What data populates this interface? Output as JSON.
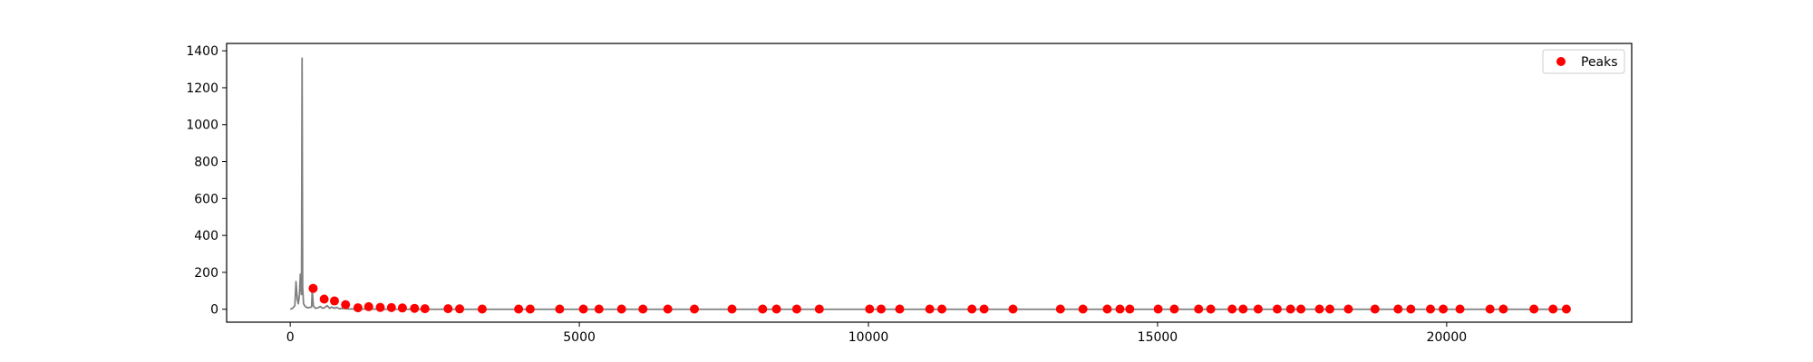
{
  "chart_data": {
    "type": "line",
    "title": "",
    "xlabel": "",
    "ylabel": "",
    "xlim": [
      -1100,
      23200
    ],
    "ylim": [
      -70,
      1440
    ],
    "grid": false,
    "legend_position": "top-right",
    "x_ticks": [
      0,
      5000,
      10000,
      15000,
      20000
    ],
    "y_ticks": [
      0,
      200,
      400,
      600,
      800,
      1000,
      1200,
      1400
    ],
    "x_tick_labels": [
      "0",
      "5000",
      "10000",
      "15000",
      "20000"
    ],
    "y_tick_labels": [
      "0",
      "200",
      "400",
      "600",
      "800",
      "1000",
      "1200",
      "1400"
    ],
    "series": [
      {
        "kind": "line",
        "color": "#808080",
        "x": [
          0,
          40,
          80,
          100,
          120,
          140,
          160,
          175,
          185,
          195,
          205,
          215,
          230,
          260,
          300,
          340,
          370,
          380,
          400,
          420,
          440,
          480,
          520,
          560,
          600,
          640,
          680,
          720,
          760,
          800,
          850,
          900,
          1000,
          1100,
          1200,
          1400,
          1600,
          1800,
          2000,
          2500,
          3000,
          4000,
          6000,
          8000,
          10000,
          12000,
          14000,
          16000,
          18000,
          20000,
          22000
        ],
        "y": [
          0,
          5,
          20,
          150,
          60,
          30,
          80,
          190,
          130,
          80,
          1360,
          120,
          30,
          15,
          8,
          10,
          12,
          105,
          20,
          10,
          5,
          8,
          15,
          5,
          10,
          20,
          5,
          12,
          5,
          10,
          3,
          5,
          2,
          1,
          1,
          1,
          0,
          0,
          0,
          0,
          0,
          0,
          0,
          0,
          0,
          0,
          0,
          0,
          0,
          0,
          0
        ]
      },
      {
        "kind": "scatter",
        "name": "Peaks",
        "color": "#ff0000",
        "x": [
          396,
          587,
          765,
          957,
          1171,
          1357,
          1557,
          1750,
          1940,
          2150,
          2330,
          2730,
          2930,
          3320,
          3950,
          4150,
          4660,
          5070,
          5340,
          5730,
          6100,
          6530,
          6990,
          7640,
          8170,
          8410,
          8760,
          9150,
          10020,
          10220,
          10540,
          11060,
          11270,
          11790,
          12000,
          12500,
          13320,
          13710,
          14130,
          14350,
          14520,
          15010,
          15290,
          15710,
          15920,
          16290,
          16480,
          16740,
          17070,
          17300,
          17480,
          17800,
          17980,
          18300,
          18760,
          19160,
          19380,
          19720,
          19940,
          20230,
          20750,
          20980,
          21510,
          21840,
          22070
        ],
        "y": [
          113,
          55,
          45,
          25,
          8,
          14,
          10,
          9,
          7,
          5,
          3,
          3,
          2,
          1,
          1,
          1,
          1,
          1,
          1,
          1,
          1,
          1,
          1,
          1,
          1,
          1,
          1,
          1,
          1,
          1,
          1,
          1,
          1,
          1,
          1,
          1,
          1,
          1,
          1,
          1,
          1,
          1,
          1,
          1,
          1,
          1,
          1,
          1,
          1,
          1,
          1,
          1,
          1,
          1,
          1,
          1,
          1,
          1,
          1,
          1,
          1,
          1,
          1,
          1,
          1
        ]
      }
    ]
  }
}
